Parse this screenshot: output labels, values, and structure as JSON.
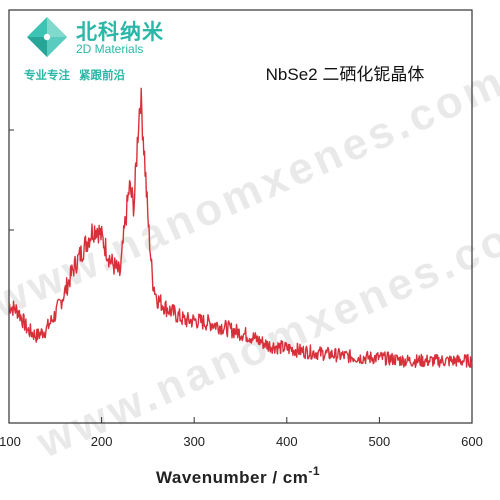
{
  "brand": {
    "name": "北科纳米",
    "subtitle": "2D Materials",
    "slogan_left": "专业专注",
    "slogan_right": "紧跟前沿",
    "color": "#2bb7a8"
  },
  "watermark": "www.nanomxenes.com",
  "chart_data": {
    "type": "line",
    "title": "NbSe2 二硒化铌晶体",
    "xlabel": "Wavenumber  / cm",
    "xlabel_superscript": "-1",
    "ylabel": "",
    "xlim": [
      100,
      600
    ],
    "ylim": [
      0,
      100
    ],
    "xticks": [
      100,
      200,
      300,
      400,
      500,
      600
    ],
    "grid": false,
    "line_color": "#d8303a",
    "series": [
      {
        "x": [
          100,
          110,
          120,
          130,
          140,
          150,
          160,
          170,
          180,
          190,
          195,
          200,
          210,
          220,
          225,
          230,
          235,
          240,
          242,
          245,
          250,
          255,
          260,
          270,
          280,
          290,
          300,
          320,
          340,
          360,
          380,
          400,
          420,
          450,
          480,
          500,
          530,
          560,
          580,
          600
        ],
        "y": [
          30,
          28,
          22,
          20,
          22,
          27,
          34,
          42,
          48,
          54,
          55,
          52,
          44,
          40,
          55,
          68,
          62,
          90,
          98,
          85,
          58,
          38,
          32,
          29,
          27,
          25,
          25,
          24,
          22,
          20,
          17,
          16,
          15,
          14,
          13,
          13,
          12,
          12,
          12,
          12
        ]
      }
    ]
  }
}
